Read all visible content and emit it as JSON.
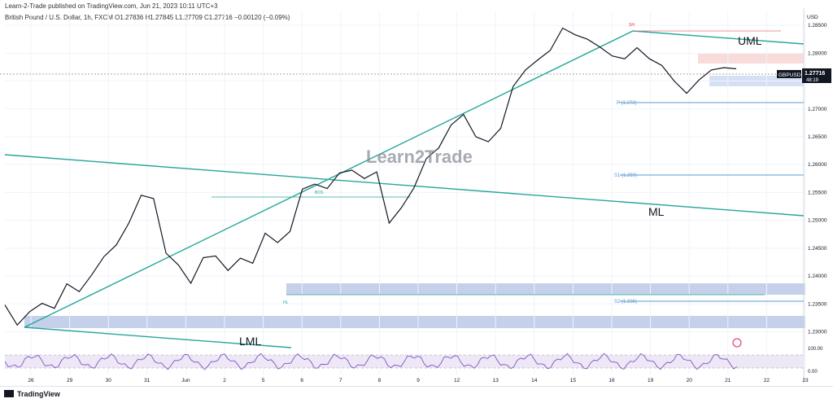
{
  "header": {
    "publisher": "Learn-2-Trade published on TradingView.com, Jun 21, 2023 10:11 UTC+3",
    "symbol_line": "British Pound / U.S. Dollar, 1h, FXCM  O1.27836  H1.27845  L1.27709  C1.27716  −0.00120 (−0.09%)"
  },
  "watermark": "Learn2Trade",
  "footer": {
    "logo": "TradingView"
  },
  "price_tag": {
    "symbol": "GBPUSD",
    "price": "1.27716",
    "countdown": "48:19"
  },
  "labels": {
    "uml": "UML",
    "ml": "ML",
    "lml": "LML",
    "p": "P (1.272)",
    "s1": "S1 (1.259)",
    "s2": "S2 (1.236)",
    "bos": "BOS",
    "hl": "HL",
    "sh": "SH"
  },
  "colors": {
    "fork": "#26a69a",
    "pivot": "#5b9bd5",
    "zone": "#c5d0ea",
    "resistance_zone": "#f8dcdc",
    "rsi": "#7e57c2"
  },
  "chart_data": {
    "type": "line",
    "title": "",
    "x": [
      "26",
      "29",
      "30",
      "31",
      "Jun",
      "2",
      "5",
      "6",
      "7",
      "8",
      "9",
      "12",
      "13",
      "14",
      "15",
      "16",
      "19",
      "20",
      "21",
      "22",
      "23"
    ],
    "ylabel": "USD",
    "ylim": [
      1.227,
      1.2875
    ],
    "yticks": [
      1.23,
      1.235,
      1.24,
      1.245,
      1.25,
      1.255,
      1.26,
      1.265,
      1.27,
      1.275,
      1.28,
      1.285
    ],
    "ytick_labels": [
      "1.23000",
      "1.23500",
      "1.24000",
      "1.24500",
      "1.25000",
      "1.25500",
      "1.26000",
      "1.26500",
      "1.27000",
      "1.27500",
      "1.28000",
      "1.28500"
    ],
    "series": [
      {
        "values": [
          [
            0,
            1.2348
          ],
          [
            0.5,
            1.2312
          ],
          [
            1,
            1.2336
          ],
          [
            1.5,
            1.2351
          ],
          [
            2,
            1.2342
          ],
          [
            2.5,
            1.2386
          ],
          [
            3,
            1.2372
          ],
          [
            3.5,
            1.2402
          ],
          [
            4,
            1.2435
          ],
          [
            4.5,
            1.2456
          ],
          [
            5,
            1.2495
          ],
          [
            5.5,
            1.2545
          ],
          [
            6,
            1.2539
          ],
          [
            6.5,
            1.2441
          ],
          [
            7,
            1.242
          ],
          [
            7.5,
            1.2387
          ],
          [
            8,
            1.2433
          ],
          [
            8.5,
            1.2436
          ],
          [
            9,
            1.241
          ],
          [
            9.5,
            1.2432
          ],
          [
            10,
            1.2423
          ],
          [
            10.5,
            1.2477
          ],
          [
            11,
            1.246
          ],
          [
            11.5,
            1.248
          ],
          [
            12,
            1.2556
          ],
          [
            12.5,
            1.2565
          ],
          [
            13,
            1.2557
          ],
          [
            13.5,
            1.2585
          ],
          [
            14,
            1.259
          ],
          [
            14.5,
            1.2575
          ],
          [
            15,
            1.2587
          ],
          [
            15.5,
            1.2495
          ],
          [
            16,
            1.2523
          ],
          [
            16.5,
            1.2558
          ],
          [
            17,
            1.2611
          ],
          [
            17.5,
            1.263
          ],
          [
            18,
            1.2671
          ],
          [
            18.5,
            1.269
          ],
          [
            19,
            1.265
          ],
          [
            19.5,
            1.2641
          ],
          [
            20,
            1.2665
          ],
          [
            20.5,
            1.274
          ],
          [
            21,
            1.277
          ],
          [
            21.5,
            1.2788
          ],
          [
            22,
            1.2805
          ],
          [
            22.5,
            1.2845
          ],
          [
            23,
            1.2833
          ],
          [
            23.5,
            1.2825
          ],
          [
            24,
            1.2811
          ],
          [
            24.5,
            1.2795
          ],
          [
            25,
            1.279
          ],
          [
            25.5,
            1.281
          ],
          [
            26,
            1.279
          ],
          [
            26.5,
            1.2778
          ],
          [
            27,
            1.275
          ],
          [
            27.5,
            1.2728
          ],
          [
            28,
            1.2752
          ],
          [
            28.5,
            1.277
          ],
          [
            29,
            1.2774
          ],
          [
            29.5,
            1.2772
          ]
        ]
      }
    ],
    "annotations": {
      "pivots": {
        "P": 1.272,
        "S1": 1.259,
        "S2": 1.236
      },
      "last_price": 1.27716
    },
    "rsi": {
      "ylim": [
        0,
        100
      ],
      "tick_labels": [
        "0.00",
        "100.00"
      ]
    },
    "grid": true
  }
}
